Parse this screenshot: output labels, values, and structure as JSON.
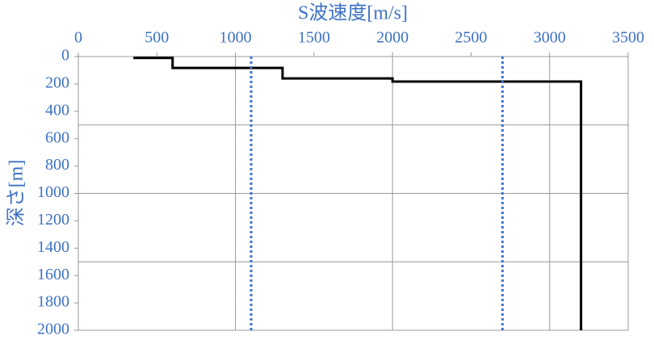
{
  "chart_data": {
    "type": "line",
    "x_label": "S波速度[m/s]",
    "y_label": "深さ[m]",
    "xlim": [
      0,
      3500
    ],
    "xticks": [
      0,
      500,
      1000,
      1500,
      2000,
      2500,
      3000,
      3500
    ],
    "ylim": [
      0,
      2000
    ],
    "yticks": [
      0,
      200,
      400,
      600,
      800,
      1000,
      1200,
      1400,
      1600,
      1800,
      2000
    ],
    "y_inverted": true,
    "xgrid": [
      1000,
      2000,
      3000,
      3500
    ],
    "ygrid": [
      500,
      1000,
      1500,
      2000
    ],
    "series": [
      {
        "color": "#000000",
        "style": "solid",
        "x": [
          350,
          600,
          600,
          1300,
          1300,
          2000,
          2000,
          3200,
          3200
        ],
        "values": [
          10,
          10,
          83,
          83,
          160,
          160,
          183,
          183,
          2000
        ]
      },
      {
        "color": "#3d72d0",
        "style": "dotted",
        "x": [
          1100,
          1100
        ],
        "values": [
          0,
          2000
        ]
      },
      {
        "color": "#3d72d0",
        "style": "dotted",
        "x": [
          2700,
          2700
        ],
        "values": [
          0,
          2000
        ]
      }
    ]
  }
}
